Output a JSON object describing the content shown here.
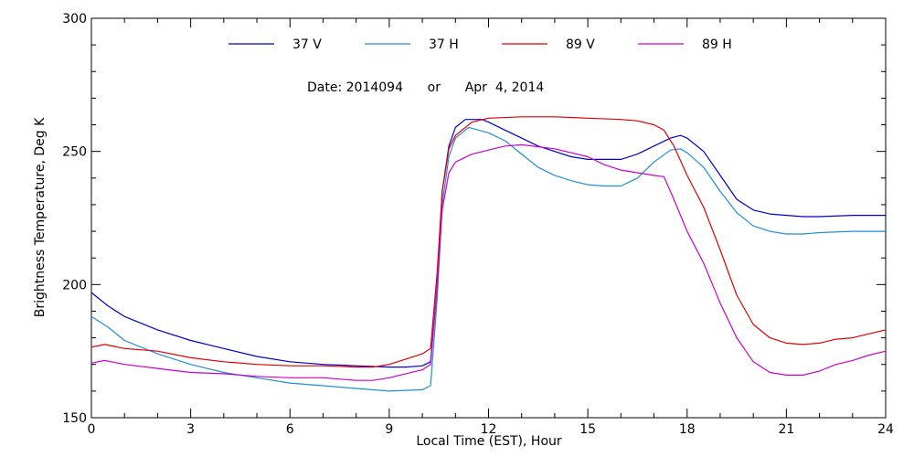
{
  "chart_data": {
    "type": "line",
    "date_label": "Date: 2014094      or      Apr  4, 2014",
    "xlabel": "Local Time (EST), Hour",
    "ylabel": "Brightness Temperature, Deg K",
    "xlim": [
      0,
      24
    ],
    "ylim": [
      150,
      300
    ],
    "x_ticks": [
      0,
      3,
      6,
      9,
      12,
      15,
      18,
      21,
      24
    ],
    "x_tick_labels": [
      "0",
      "3",
      "6",
      "9",
      "12",
      "15",
      "18",
      "21",
      "24"
    ],
    "y_ticks": [
      150,
      200,
      250,
      300
    ],
    "y_tick_labels": [
      "150",
      "200",
      "250",
      "300"
    ],
    "grid": false,
    "legend_position": "top",
    "series": [
      {
        "name": "37 V",
        "color": "#0000cc",
        "points": [
          [
            0,
            197
          ],
          [
            0.5,
            192
          ],
          [
            1,
            188
          ],
          [
            2,
            183
          ],
          [
            3,
            179
          ],
          [
            4,
            176
          ],
          [
            5,
            173
          ],
          [
            6,
            171
          ],
          [
            7,
            170
          ],
          [
            8,
            169.5
          ],
          [
            9,
            169
          ],
          [
            9.5,
            169
          ],
          [
            10,
            169.5
          ],
          [
            10.25,
            171
          ],
          [
            10.45,
            200
          ],
          [
            10.6,
            235
          ],
          [
            10.8,
            252
          ],
          [
            11,
            259
          ],
          [
            11.3,
            262
          ],
          [
            11.8,
            262
          ],
          [
            12,
            261
          ],
          [
            12.5,
            258
          ],
          [
            13,
            255
          ],
          [
            13.5,
            252
          ],
          [
            14,
            250
          ],
          [
            14.5,
            248
          ],
          [
            15,
            247
          ],
          [
            15.5,
            247
          ],
          [
            16,
            247
          ],
          [
            16.5,
            249
          ],
          [
            17,
            252
          ],
          [
            17.5,
            255
          ],
          [
            17.8,
            256
          ],
          [
            18,
            255
          ],
          [
            18.5,
            250
          ],
          [
            19,
            241
          ],
          [
            19.5,
            232
          ],
          [
            20,
            228
          ],
          [
            20.5,
            226.5
          ],
          [
            21,
            226
          ],
          [
            21.5,
            225.5
          ],
          [
            22,
            225.5
          ],
          [
            23,
            226
          ],
          [
            24,
            226
          ]
        ]
      },
      {
        "name": "37 H",
        "color": "#1f8fd8",
        "points": [
          [
            0,
            188
          ],
          [
            0.5,
            184
          ],
          [
            1,
            179
          ],
          [
            2,
            174
          ],
          [
            3,
            170
          ],
          [
            4,
            167
          ],
          [
            5,
            165
          ],
          [
            6,
            163
          ],
          [
            7,
            162
          ],
          [
            8,
            161
          ],
          [
            9,
            160
          ],
          [
            10,
            160.5
          ],
          [
            10.25,
            162
          ],
          [
            10.45,
            195
          ],
          [
            10.6,
            230
          ],
          [
            10.8,
            248
          ],
          [
            11,
            255
          ],
          [
            11.4,
            259
          ],
          [
            12,
            257
          ],
          [
            12.5,
            254
          ],
          [
            13,
            249
          ],
          [
            13.5,
            244
          ],
          [
            14,
            241
          ],
          [
            14.5,
            239
          ],
          [
            15,
            237.5
          ],
          [
            15.5,
            237
          ],
          [
            16,
            237
          ],
          [
            16.5,
            240
          ],
          [
            17,
            246
          ],
          [
            17.5,
            250.5
          ],
          [
            17.8,
            251
          ],
          [
            18,
            249.5
          ],
          [
            18.5,
            244
          ],
          [
            19,
            235
          ],
          [
            19.5,
            227
          ],
          [
            20,
            222
          ],
          [
            20.5,
            220
          ],
          [
            21,
            219
          ],
          [
            21.5,
            219
          ],
          [
            22,
            219.5
          ],
          [
            23,
            220
          ],
          [
            24,
            220
          ]
        ]
      },
      {
        "name": "89 V",
        "color": "#e00000",
        "points": [
          [
            0,
            176.5
          ],
          [
            0.4,
            177.5
          ],
          [
            1,
            176
          ],
          [
            2,
            175
          ],
          [
            3,
            172.5
          ],
          [
            4,
            171
          ],
          [
            5,
            170
          ],
          [
            6,
            169.5
          ],
          [
            7,
            169.5
          ],
          [
            8,
            169
          ],
          [
            8.5,
            169
          ],
          [
            9,
            170
          ],
          [
            9.5,
            172
          ],
          [
            10,
            174
          ],
          [
            10.25,
            176
          ],
          [
            10.45,
            205
          ],
          [
            10.6,
            235
          ],
          [
            10.8,
            251
          ],
          [
            11,
            256
          ],
          [
            11.5,
            261
          ],
          [
            12,
            262.5
          ],
          [
            13,
            263
          ],
          [
            14,
            263
          ],
          [
            15,
            262.5
          ],
          [
            16,
            262
          ],
          [
            16.5,
            261.5
          ],
          [
            17,
            260
          ],
          [
            17.3,
            258
          ],
          [
            17.6,
            252
          ],
          [
            18,
            241
          ],
          [
            18.5,
            229
          ],
          [
            19,
            213
          ],
          [
            19.5,
            196
          ],
          [
            20,
            185
          ],
          [
            20.5,
            180
          ],
          [
            21,
            178
          ],
          [
            21.5,
            177.5
          ],
          [
            22,
            178
          ],
          [
            22.5,
            179.5
          ],
          [
            23,
            180
          ],
          [
            23.5,
            181.5
          ],
          [
            24,
            183
          ]
        ]
      },
      {
        "name": "89 H",
        "color": "#cc00cc",
        "points": [
          [
            0,
            170.5
          ],
          [
            0.4,
            171.5
          ],
          [
            1,
            170
          ],
          [
            2,
            168.5
          ],
          [
            3,
            167
          ],
          [
            4,
            166.5
          ],
          [
            5,
            165.5
          ],
          [
            6,
            165
          ],
          [
            7,
            165
          ],
          [
            8,
            164
          ],
          [
            8.5,
            164
          ],
          [
            9,
            165
          ],
          [
            9.5,
            166.5
          ],
          [
            10,
            168
          ],
          [
            10.25,
            170
          ],
          [
            10.45,
            200
          ],
          [
            10.6,
            228
          ],
          [
            10.8,
            242
          ],
          [
            11,
            246
          ],
          [
            11.5,
            249
          ],
          [
            12,
            250.5
          ],
          [
            12.5,
            252
          ],
          [
            13,
            252.5
          ],
          [
            14,
            251
          ],
          [
            15,
            248
          ],
          [
            15.5,
            245
          ],
          [
            16,
            243
          ],
          [
            16.5,
            242
          ],
          [
            17,
            241
          ],
          [
            17.3,
            240.5
          ],
          [
            17.6,
            232
          ],
          [
            18,
            220
          ],
          [
            18.5,
            208
          ],
          [
            19,
            193
          ],
          [
            19.5,
            180
          ],
          [
            20,
            171
          ],
          [
            20.5,
            167
          ],
          [
            21,
            166
          ],
          [
            21.5,
            166
          ],
          [
            22,
            167.5
          ],
          [
            22.5,
            170
          ],
          [
            23,
            171.5
          ],
          [
            23.5,
            173.5
          ],
          [
            24,
            175
          ]
        ]
      }
    ]
  }
}
